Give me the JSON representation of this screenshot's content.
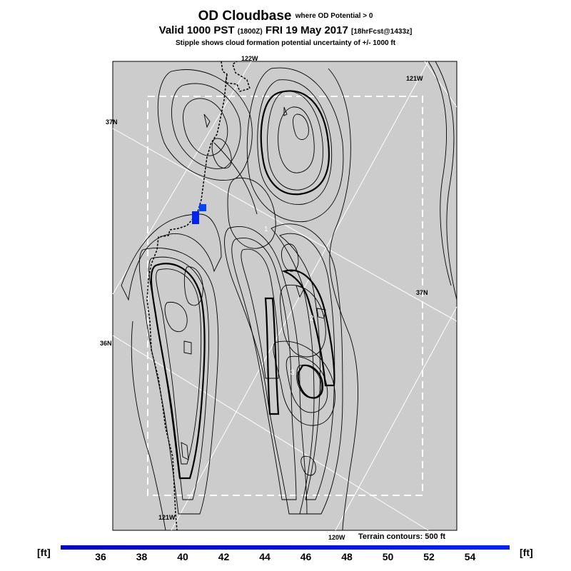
{
  "header": {
    "title_main": "OD Cloudbase",
    "title_sub": "where OD Potential > 0",
    "valid_prefix": "Valid 1000 PST",
    "valid_utc": "(1800Z)",
    "valid_date": "FRI 19 May 2017",
    "forecast_tag": "[18hrFcst@1433z]",
    "stipple_note": "Stipple shows cloud formation potential uncertainty of +/- 1000 ft"
  },
  "map": {
    "lat_labels": [
      "37N",
      "37N",
      "36N"
    ],
    "lon_labels": [
      "122W",
      "121W",
      "121W",
      "120W"
    ],
    "contour_labels": [
      "1",
      "2",
      "3"
    ],
    "background_color": "#cccccc",
    "contour_color": "#000000",
    "highlight_color": "#0033ff"
  },
  "footer": {
    "terrain_note": "Terrain contours: 500 ft"
  },
  "colorbar": {
    "unit_left": "[ft]",
    "unit_right": "[ft]",
    "ticks": [
      "36",
      "38",
      "40",
      "42",
      "44",
      "46",
      "48",
      "50",
      "52",
      "54"
    ],
    "colors": [
      "#0000cc",
      "#0022ff"
    ]
  }
}
